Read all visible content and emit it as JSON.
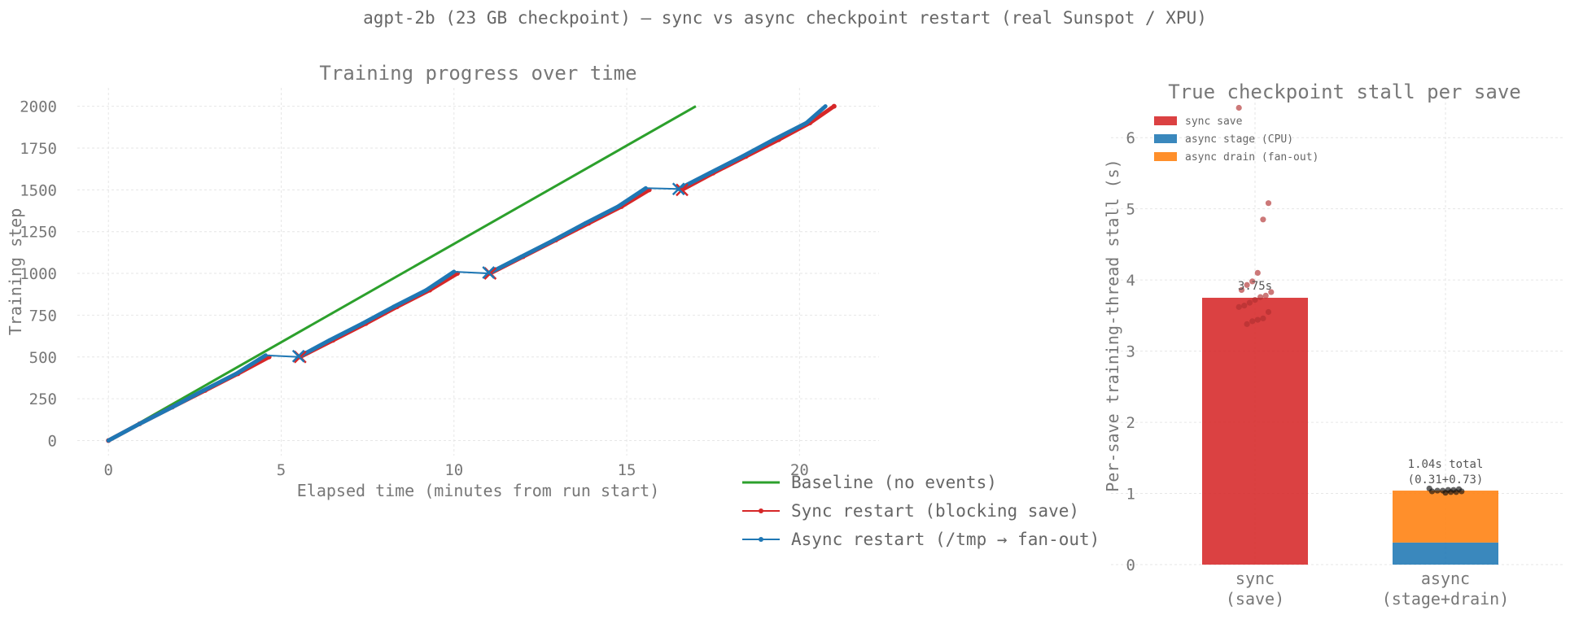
{
  "suptitle": "agpt-2b (23 GB checkpoint) — sync vs async checkpoint restart (real Sunspot / XPU)",
  "chart_data": [
    {
      "type": "line",
      "title": "Training progress over time",
      "xlabel": "Elapsed time (minutes from run start)",
      "ylabel": "Training step",
      "xlim": [
        -0.9,
        22.3
      ],
      "ylim": [
        -90,
        2110
      ],
      "xticks": [
        0,
        5,
        10,
        15,
        20
      ],
      "yticks": [
        0,
        250,
        500,
        750,
        1000,
        1250,
        1500,
        1750,
        2000
      ],
      "grid": true,
      "legend_position": "lower-right",
      "series": [
        {
          "name": "Baseline (no events)",
          "color": "#2ca02c",
          "x": [
            0,
            17.0
          ],
          "y": [
            0,
            2000
          ]
        },
        {
          "name": "Sync restart (blocking save)",
          "color": "#d62728",
          "segments": [
            {
              "x": [
                0,
                0.9,
                1.85,
                2.8,
                3.75,
                4.65
              ],
              "y": [
                0,
                100,
                200,
                300,
                400,
                500
              ]
            },
            {
              "x": [
                5.55,
                6.5,
                7.45,
                8.35,
                9.3,
                10.1
              ],
              "y": [
                500,
                600,
                700,
                800,
                900,
                1000
              ]
            },
            {
              "x": [
                11.05,
                12.0,
                12.95,
                13.9,
                14.85,
                15.65
              ],
              "y": [
                1000,
                1100,
                1200,
                1300,
                1400,
                1500
              ]
            },
            {
              "x": [
                16.6,
                17.5,
                18.45,
                19.4,
                20.3,
                21.0
              ],
              "y": [
                1500,
                1600,
                1700,
                1800,
                1900,
                2000
              ]
            }
          ],
          "restart_markers": {
            "x": [
              5.55,
              11.05,
              16.6
            ],
            "y": [
              500,
              1000,
              1500
            ]
          }
        },
        {
          "name": "Async restart (/tmp → fan-out)",
          "color": "#1f77b4",
          "x": [
            0,
            0.9,
            1.85,
            2.75,
            3.7,
            4.55,
            5.5,
            6.4,
            7.35,
            8.25,
            9.2,
            10.0,
            11.0,
            11.95,
            12.9,
            13.8,
            14.75,
            15.55,
            16.5,
            17.4,
            18.35,
            19.25,
            20.2,
            20.75
          ],
          "y": [
            0,
            100,
            200,
            300,
            400,
            510,
            500,
            600,
            700,
            800,
            900,
            1010,
            1000,
            1100,
            1200,
            1300,
            1400,
            1510,
            1505,
            1600,
            1700,
            1800,
            1900,
            2000
          ],
          "restart_markers": {
            "x": [
              5.5,
              11.0,
              16.5
            ],
            "y": [
              505,
              1005,
              1505
            ]
          }
        }
      ]
    },
    {
      "type": "bar",
      "title": "True checkpoint stall per save",
      "ylabel": "Per-save training-thread stall (s)",
      "ylim": [
        0,
        6.7
      ],
      "yticks": [
        0,
        1,
        2,
        3,
        4,
        5,
        6
      ],
      "categories": [
        "sync\n(save)",
        "async\n(stage+drain)"
      ],
      "grid": true,
      "legend_position": "upper-left",
      "stacks": [
        {
          "name": "sync save",
          "color": "#d62728",
          "values": [
            3.75,
            0
          ]
        },
        {
          "name": "async stage (CPU)",
          "color": "#1f77b4",
          "values": [
            0,
            0.31
          ]
        },
        {
          "name": "async drain (fan-out)",
          "color": "#ff7f0e",
          "values": [
            0,
            0.73
          ]
        }
      ],
      "annotations": [
        "3.75s",
        "1.04s total\n(0.31+0.73)"
      ],
      "points": [
        {
          "category": 0,
          "color": "#b03030",
          "values": [
            6.42,
            5.08,
            4.85,
            4.1,
            3.98,
            3.93,
            3.86,
            3.83,
            3.78,
            3.76,
            3.72,
            3.68,
            3.64,
            3.62,
            3.55,
            3.46,
            3.44,
            3.42,
            3.38
          ]
        },
        {
          "category": 1,
          "color": "#111111",
          "values": [
            1.07,
            1.06,
            1.05,
            1.05,
            1.04,
            1.04,
            1.03,
            1.03,
            1.02,
            1.02,
            1.01
          ]
        }
      ]
    }
  ]
}
